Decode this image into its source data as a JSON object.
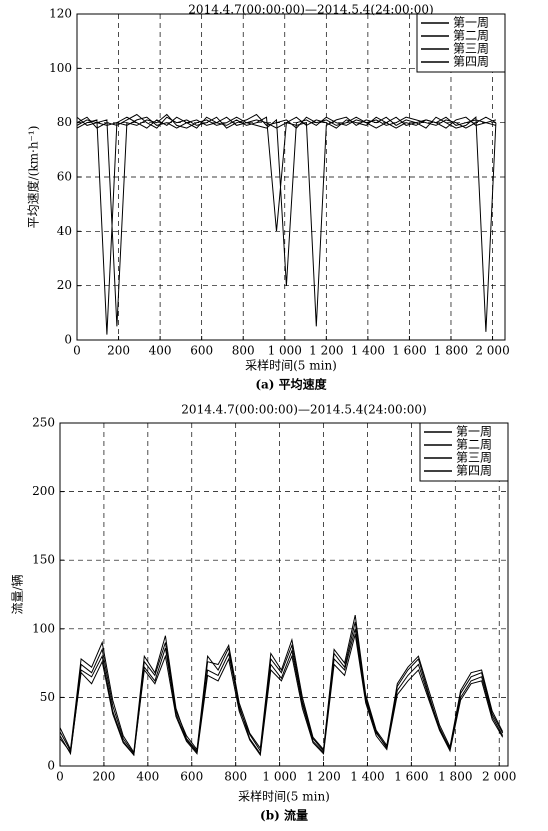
{
  "chart_data": [
    {
      "type": "line",
      "title": "2014.4.7(00:00:00)—2014.5.4(24:00:00)",
      "x_label": "采样时间(5 min)",
      "y_label": "平均速度/(km·h⁻¹)",
      "caption": "(a) 平均速度",
      "x": [
        0,
        48,
        96,
        144,
        192,
        240,
        288,
        336,
        384,
        432,
        480,
        528,
        576,
        624,
        672,
        720,
        768,
        816,
        864,
        912,
        960,
        1008,
        1056,
        1104,
        1152,
        1200,
        1248,
        1296,
        1344,
        1392,
        1440,
        1488,
        1536,
        1584,
        1632,
        1680,
        1728,
        1776,
        1824,
        1872,
        1920,
        1968,
        2016
      ],
      "series": [
        {
          "name": "第一周",
          "color": "#000000",
          "values": [
            80,
            82,
            78,
            80,
            79,
            81,
            83,
            80,
            78,
            82,
            80,
            81,
            79,
            80,
            82,
            78,
            80,
            81,
            83,
            79,
            80,
            81,
            78,
            82,
            80,
            81,
            79,
            80,
            82,
            80,
            81,
            79,
            80,
            82,
            81,
            80,
            79,
            81,
            80,
            78,
            80,
            82,
            80
          ]
        },
        {
          "name": "第二周",
          "color": "#000000",
          "values": [
            78,
            80,
            81,
            2,
            80,
            79,
            81,
            82,
            79,
            80,
            78,
            80,
            81,
            79,
            80,
            82,
            79,
            80,
            81,
            80,
            78,
            80,
            82,
            79,
            81,
            80,
            78,
            81,
            80,
            79,
            82,
            80,
            78,
            80,
            79,
            81,
            80,
            82,
            79,
            80,
            81,
            80,
            79
          ]
        },
        {
          "name": "第三周",
          "color": "#000000",
          "values": [
            82,
            79,
            80,
            81,
            5,
            80,
            79,
            81,
            80,
            83,
            79,
            78,
            80,
            81,
            79,
            80,
            82,
            80,
            79,
            78,
            81,
            20,
            80,
            81,
            79,
            82,
            80,
            79,
            81,
            80,
            78,
            80,
            82,
            79,
            80,
            81,
            80,
            78,
            81,
            82,
            79,
            80,
            81
          ]
        },
        {
          "name": "第四周",
          "color": "#000000",
          "values": [
            79,
            81,
            80,
            79,
            80,
            82,
            80,
            78,
            81,
            79,
            82,
            80,
            78,
            82,
            80,
            79,
            81,
            79,
            80,
            82,
            40,
            80,
            79,
            80,
            5,
            79,
            81,
            82,
            79,
            81,
            80,
            82,
            79,
            81,
            80,
            78,
            82,
            80,
            78,
            79,
            82,
            3,
            80
          ]
        }
      ],
      "xlim": [
        0,
        2060
      ],
      "ylim": [
        0,
        120
      ],
      "xticks": [
        0,
        200,
        400,
        600,
        800,
        {
          "value": 1000,
          "label": "1 000"
        },
        {
          "value": 1200,
          "label": "1 200"
        },
        {
          "value": 1400,
          "label": "1 400"
        },
        {
          "value": 1600,
          "label": "1 600"
        },
        {
          "value": 1800,
          "label": "1 800"
        },
        {
          "value": 2000,
          "label": "2 000"
        }
      ],
      "yticks": [
        0,
        20,
        40,
        60,
        80,
        100,
        120
      ],
      "grid": true,
      "legend": "upper right"
    },
    {
      "type": "line",
      "title": "2014.4.7(00:00:00)—2014.5.4(24:00:00)",
      "x_label": "采样时间(5 min)",
      "y_label": "流量/辆",
      "caption": "(b) 流量",
      "x": [
        0,
        48,
        96,
        144,
        192,
        240,
        288,
        336,
        384,
        432,
        480,
        528,
        576,
        624,
        672,
        720,
        768,
        816,
        864,
        912,
        960,
        1008,
        1056,
        1104,
        1152,
        1200,
        1248,
        1296,
        1344,
        1392,
        1440,
        1488,
        1536,
        1584,
        1632,
        1680,
        1728,
        1776,
        1824,
        1872,
        1920,
        1968,
        2016
      ],
      "series": [
        {
          "name": "第一周",
          "color": "#000000",
          "values": [
            28,
            12,
            78,
            72,
            90,
            48,
            22,
            10,
            80,
            68,
            95,
            42,
            20,
            11,
            76,
            74,
            88,
            46,
            24,
            13,
            82,
            70,
            92,
            50,
            21,
            12,
            85,
            75,
            110,
            52,
            26,
            15,
            60,
            72,
            80,
            55,
            30,
            14,
            55,
            68,
            70,
            40,
            25
          ]
        },
        {
          "name": "第二周",
          "color": "#000000",
          "values": [
            22,
            9,
            70,
            65,
            80,
            40,
            18,
            8,
            72,
            62,
            86,
            38,
            19,
            10,
            70,
            66,
            82,
            44,
            20,
            9,
            74,
            64,
            84,
            45,
            18,
            10,
            78,
            70,
            100,
            48,
            24,
            14,
            55,
            66,
            74,
            50,
            28,
            12,
            50,
            62,
            65,
            36,
            22
          ]
        },
        {
          "name": "第三周",
          "color": "#000000",
          "values": [
            25,
            11,
            74,
            68,
            85,
            44,
            20,
            9,
            76,
            66,
            90,
            40,
            22,
            12,
            80,
            70,
            86,
            42,
            23,
            11,
            78,
            68,
            88,
            47,
            20,
            11,
            82,
            72,
            105,
            50,
            25,
            13,
            58,
            70,
            78,
            52,
            27,
            13,
            53,
            65,
            68,
            38,
            24
          ]
        },
        {
          "name": "第四周",
          "color": "#000000",
          "values": [
            20,
            10,
            68,
            60,
            76,
            38,
            17,
            8,
            70,
            60,
            80,
            36,
            18,
            9,
            66,
            62,
            78,
            40,
            19,
            8,
            70,
            62,
            80,
            42,
            17,
            9,
            74,
            66,
            96,
            46,
            22,
            12,
            52,
            62,
            70,
            48,
            26,
            11,
            48,
            60,
            62,
            34,
            21
          ]
        }
      ],
      "xlim": [
        0,
        2040
      ],
      "ylim": [
        0,
        250
      ],
      "xticks": [
        0,
        200,
        400,
        600,
        800,
        {
          "value": 1000,
          "label": "1 000"
        },
        {
          "value": 1200,
          "label": "1 200"
        },
        {
          "value": 1400,
          "label": "1 400"
        },
        {
          "value": 1600,
          "label": "1 600"
        },
        {
          "value": 1800,
          "label": "1 800"
        },
        {
          "value": 2000,
          "label": "2 000"
        }
      ],
      "yticks": [
        0,
        50,
        100,
        150,
        200,
        250
      ],
      "grid": true,
      "legend": "upper right"
    }
  ]
}
